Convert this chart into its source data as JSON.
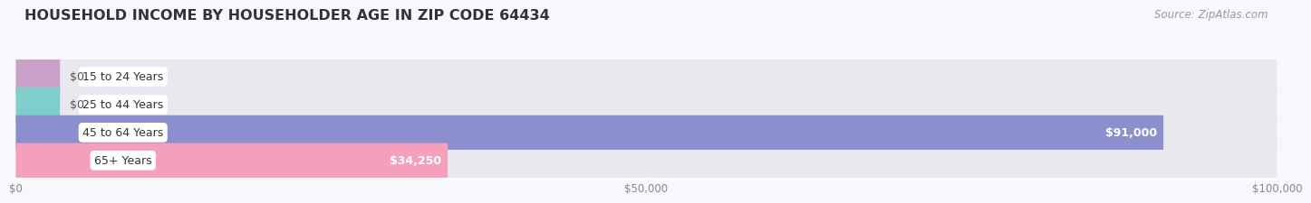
{
  "title": "HOUSEHOLD INCOME BY HOUSEHOLDER AGE IN ZIP CODE 64434",
  "source": "Source: ZipAtlas.com",
  "categories": [
    "15 to 24 Years",
    "25 to 44 Years",
    "45 to 64 Years",
    "65+ Years"
  ],
  "values": [
    0,
    0,
    91000,
    34250
  ],
  "bar_colors": [
    "#c9a0c8",
    "#7ecfcc",
    "#8b8fcd",
    "#f4a0bb"
  ],
  "bar_bg_color": "#e8e8ee",
  "value_labels": [
    "$0",
    "$0",
    "$91,000",
    "$34,250"
  ],
  "xlim": [
    0,
    100000
  ],
  "xticks": [
    0,
    50000,
    100000
  ],
  "xticklabels": [
    "$0",
    "$50,000",
    "$100,000"
  ],
  "background_color": "#f8f8fc",
  "title_fontsize": 11.5,
  "label_fontsize": 9,
  "tick_fontsize": 8.5,
  "source_fontsize": 8.5,
  "bar_height": 0.62,
  "stub_value": 3500
}
